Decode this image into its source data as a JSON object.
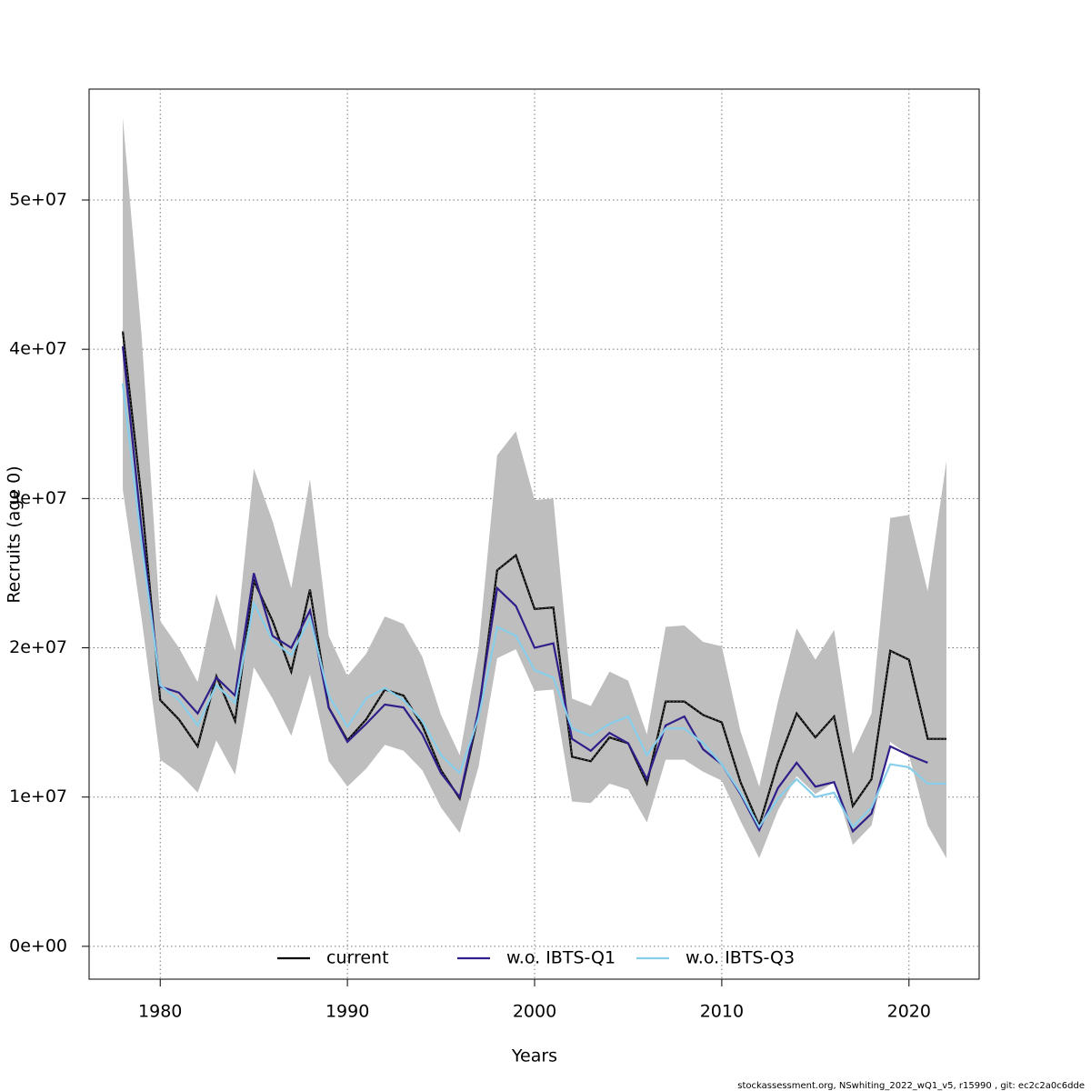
{
  "chart_data": {
    "type": "line",
    "x_label": "Years",
    "y_label": "Recruits (age 0)",
    "footer": "stockassessment.org, NSwhiting_2022_wQ1_v5, r15990 , git: ec2c2a0c6dde",
    "x": [
      1978,
      1979,
      1980,
      1981,
      1982,
      1983,
      1984,
      1985,
      1986,
      1987,
      1988,
      1989,
      1990,
      1991,
      1992,
      1993,
      1994,
      1995,
      1996,
      1997,
      1998,
      1999,
      2000,
      2001,
      2002,
      2003,
      2004,
      2005,
      2006,
      2007,
      2008,
      2009,
      2010,
      2011,
      2012,
      2013,
      2014,
      2015,
      2016,
      2017,
      2018,
      2019,
      2020,
      2021,
      2022
    ],
    "band": {
      "color": "#bebebe",
      "upper": [
        55500000.0,
        41000000.0,
        21800000.0,
        20000000.0,
        17700000.0,
        23600000.0,
        19800000.0,
        32000000.0,
        28500000.0,
        24000000.0,
        31300000.0,
        20800000.0,
        18100000.0,
        19600000.0,
        22100000.0,
        21600000.0,
        19400000.0,
        15500000.0,
        12800000.0,
        19900000.0,
        32900000.0,
        34500000.0,
        29900000.0,
        30000000.0,
        16600000.0,
        16100000.0,
        18400000.0,
        17800000.0,
        14200000.0,
        21400000.0,
        21500000.0,
        20400000.0,
        20100000.0,
        14400000.0,
        10700000.0,
        16400000.0,
        21300000.0,
        19200000.0,
        21200000.0,
        12900000.0,
        15600000.0,
        28700000.0,
        28900000.0,
        23800000.0,
        32500000.0
      ],
      "lower": [
        30600000.0,
        22000000.0,
        12500000.0,
        11600000.0,
        10300000.0,
        13800000.0,
        11500000.0,
        18700000.0,
        16600000.0,
        14100000.0,
        18200000.0,
        12400000.0,
        10700000.0,
        11900000.0,
        13500000.0,
        13100000.0,
        11800000.0,
        9300000.0,
        7600000.0,
        12000000.0,
        19300000.0,
        19900000.0,
        17100000.0,
        17200000.0,
        9700000.0,
        9600000.0,
        10900000.0,
        10500000.0,
        8300000.0,
        12500000.0,
        12500000.0,
        11700000.0,
        11100000.0,
        8400000.0,
        5900000.0,
        9100000.0,
        11400000.0,
        10200000.0,
        11000000.0,
        6800000.0,
        8100000.0,
        13700000.0,
        12800000.0,
        8100000.0,
        5900000.0
      ]
    },
    "series": [
      {
        "name": "current",
        "color": "#000000",
        "values": [
          41200000.0,
          30000000.0,
          16500000.0,
          15200000.0,
          13400000.0,
          18100000.0,
          15100000.0,
          24500000.0,
          21800000.0,
          18400000.0,
          23900000.0,
          16000000.0,
          13800000.0,
          15200000.0,
          17200000.0,
          16800000.0,
          14800000.0,
          11800000.0,
          9900000.0,
          15500000.0,
          25200000.0,
          26200000.0,
          22600000.0,
          22700000.0,
          12700000.0,
          12400000.0,
          14000000.0,
          13600000.0,
          10900000.0,
          16400000.0,
          16400000.0,
          15500000.0,
          15000000.0,
          11000000.0,
          8100000.0,
          12300000.0,
          15600000.0,
          14000000.0,
          15400000.0,
          9400000.0,
          11200000.0,
          19800000.0,
          19200000.0,
          13900000.0,
          13900000.0
        ]
      },
      {
        "name": "w.o. IBTS-Q1",
        "color": "#2e1f8a",
        "values": [
          40200000.0,
          28000000.0,
          17400000.0,
          17000000.0,
          15600000.0,
          18000000.0,
          16800000.0,
          25000000.0,
          20800000.0,
          20000000.0,
          22500000.0,
          16000000.0,
          13700000.0,
          14900000.0,
          16200000.0,
          16000000.0,
          14200000.0,
          11600000.0,
          10000000.0,
          15800000.0,
          24000000.0,
          22800000.0,
          20000000.0,
          20300000.0,
          13900000.0,
          13100000.0,
          14300000.0,
          13600000.0,
          11200000.0,
          14800000.0,
          15400000.0,
          13200000.0,
          12200000.0,
          10200000.0,
          7800000.0,
          10600000.0,
          12300000.0,
          10700000.0,
          11000000.0,
          7700000.0,
          8900000.0,
          13400000.0,
          12800000.0,
          12300000.0,
          null
        ]
      },
      {
        "name": "w.o. IBTS-Q3",
        "color": "#87ceeb",
        "values": [
          37700000.0,
          27000000.0,
          17500000.0,
          16500000.0,
          14800000.0,
          17500000.0,
          16300000.0,
          23000000.0,
          20500000.0,
          19500000.0,
          22000000.0,
          16800000.0,
          14700000.0,
          16600000.0,
          17300000.0,
          16500000.0,
          15100000.0,
          12800000.0,
          11600000.0,
          15300000.0,
          21400000.0,
          20800000.0,
          18500000.0,
          18000000.0,
          14600000.0,
          14100000.0,
          14900000.0,
          15400000.0,
          12800000.0,
          14600000.0,
          14600000.0,
          13600000.0,
          12200000.0,
          10300000.0,
          8000000.0,
          9900000.0,
          11200000.0,
          10000000.0,
          10300000.0,
          8000000.0,
          9300000.0,
          12200000.0,
          12000000.0,
          10900000.0,
          10900000.0
        ]
      }
    ],
    "xlim": [
      1976.2,
      2023.75
    ],
    "xticks": [
      1980,
      1990,
      2000,
      2010,
      2020
    ],
    "ylim": [
      -2200000.0,
      57430000.0
    ],
    "yticks": [
      {
        "value": 0,
        "label": "0e+00"
      },
      {
        "value": 10000000.0,
        "label": "1e+07"
      },
      {
        "value": 20000000.0,
        "label": "2e+07"
      },
      {
        "value": 30000000.0,
        "label": "3e+07"
      },
      {
        "value": 40000000.0,
        "label": "4e+07"
      },
      {
        "value": 50000000.0,
        "label": "5e+07"
      }
    ],
    "grid": true,
    "legend": "bottom"
  }
}
